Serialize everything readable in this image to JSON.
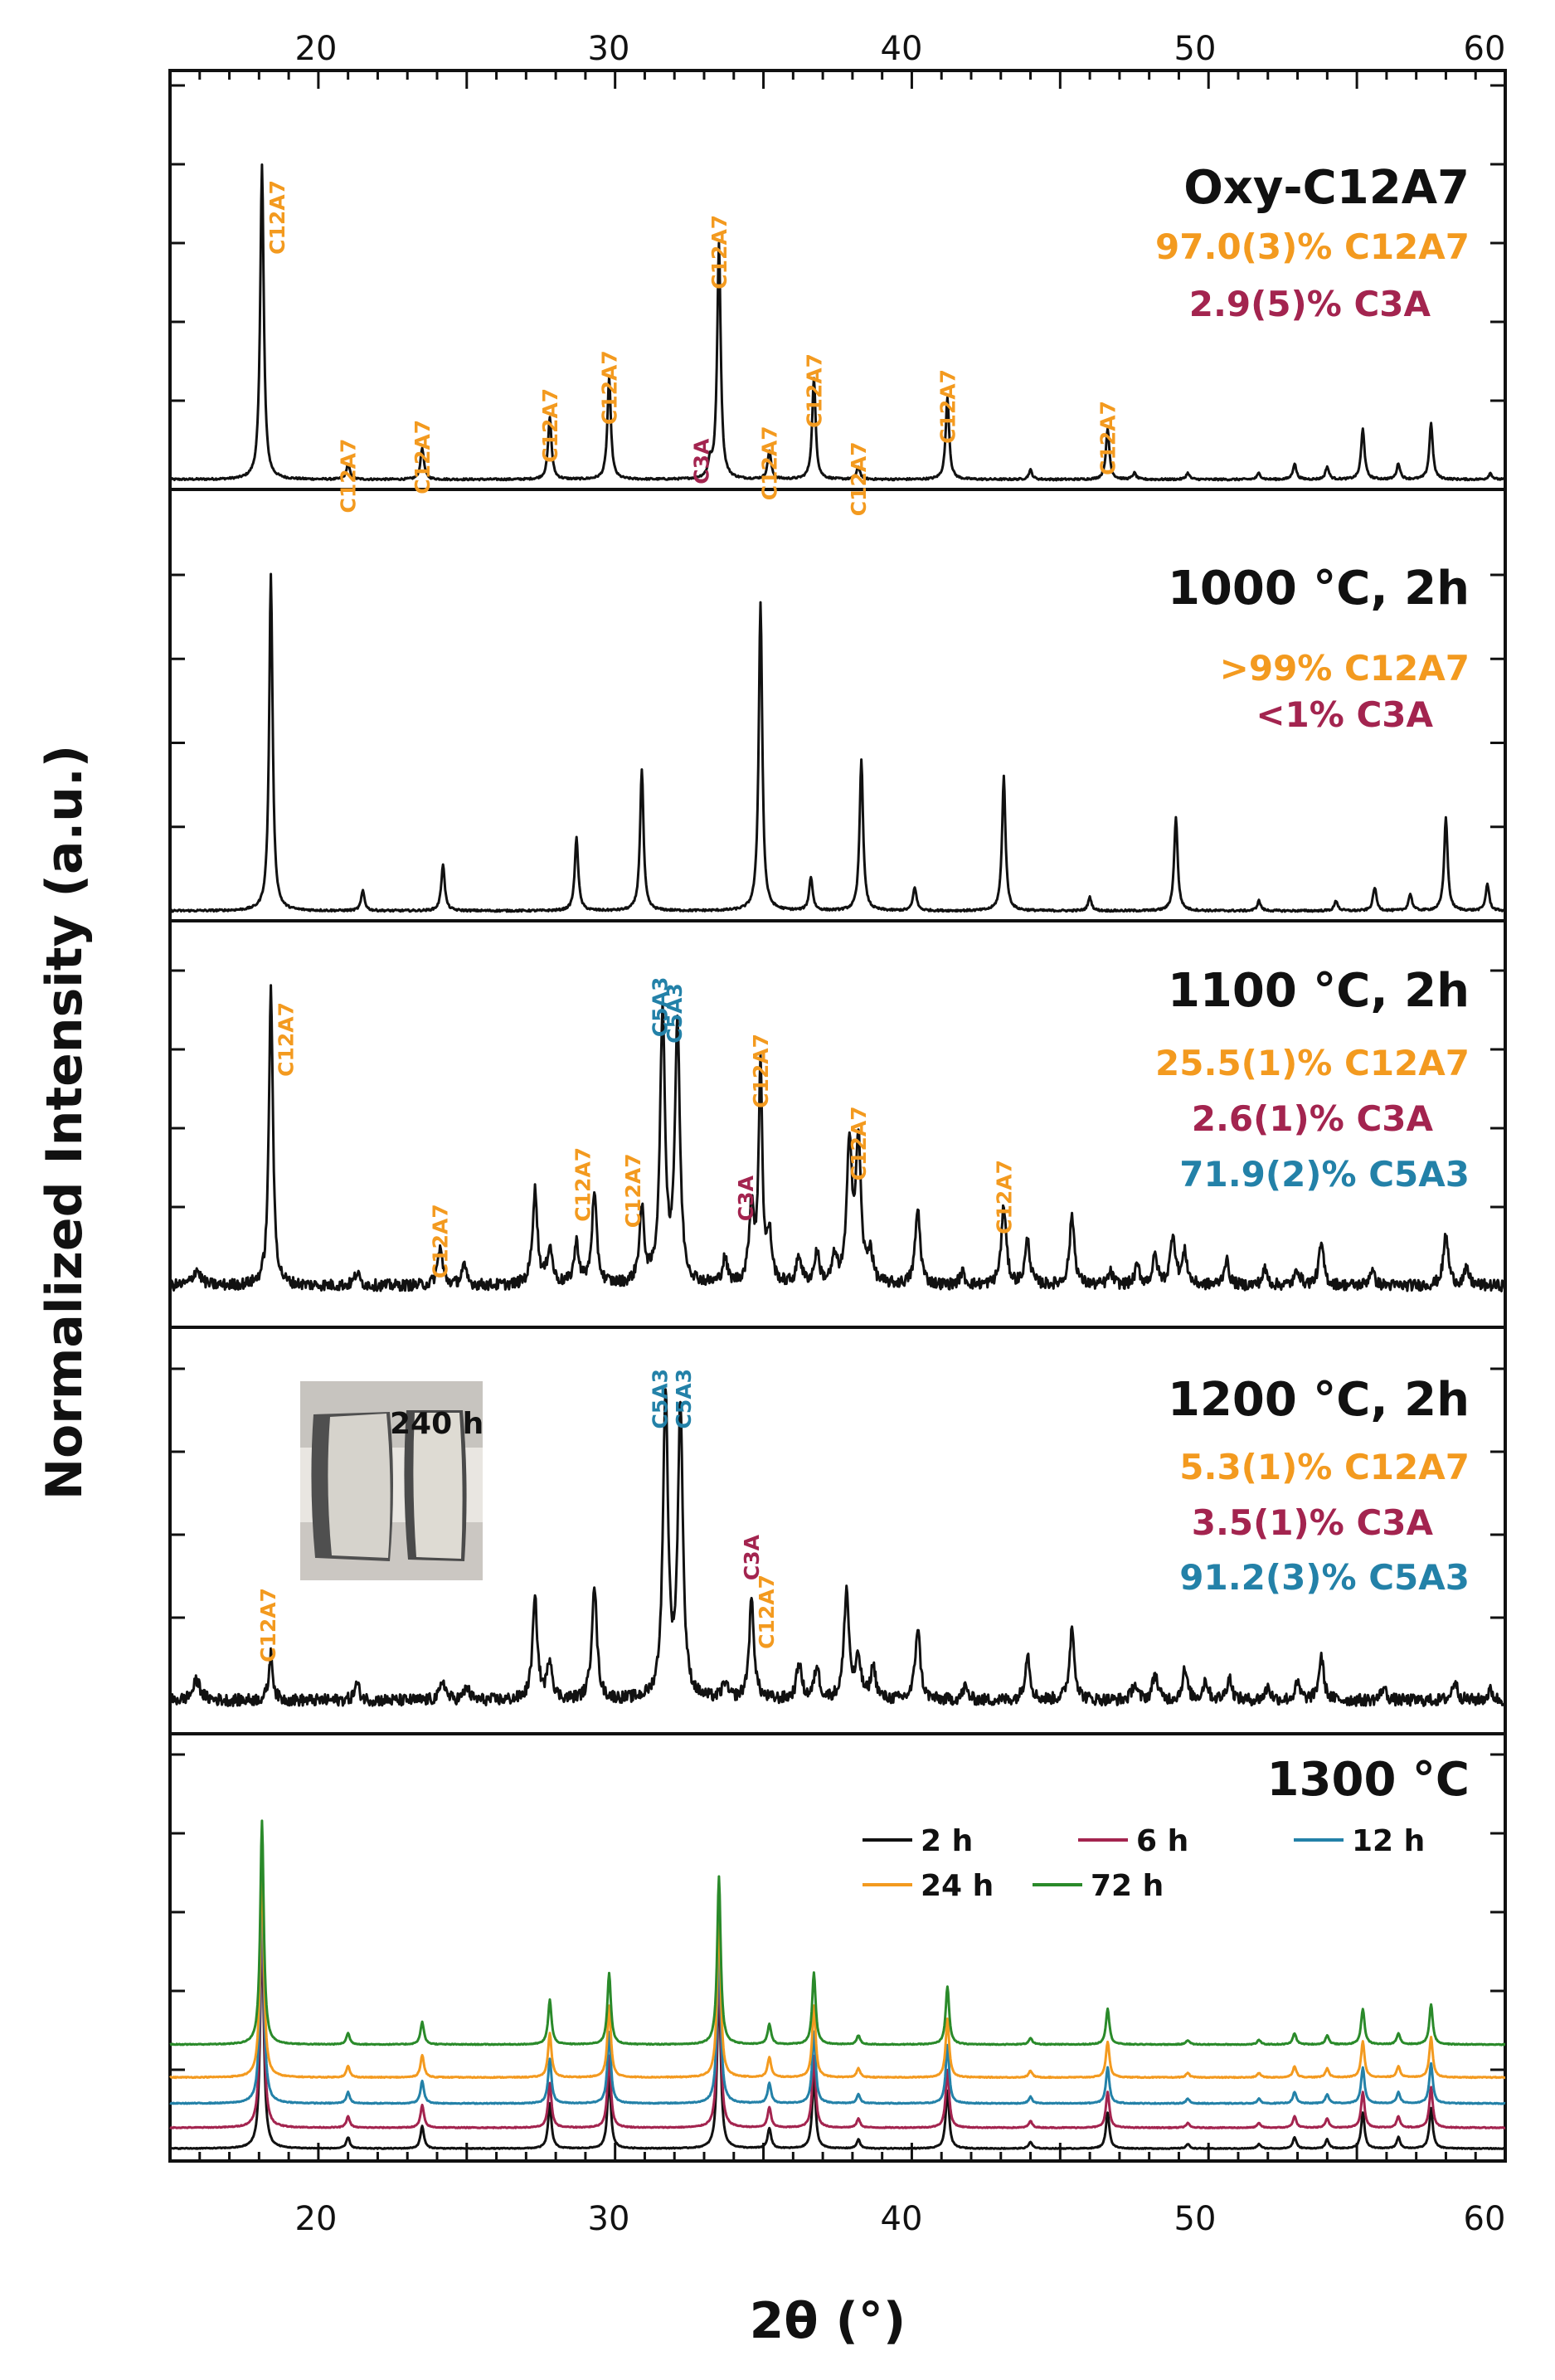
{
  "colors": {
    "axis": "#111111",
    "trace": "#111111",
    "c12a7": "#f39a1f",
    "c3a": "#a3244f",
    "c5a3": "#2381a8",
    "green": "#2a8a2a"
  },
  "chart_data": {
    "type": "line",
    "title": "",
    "xlabel": "2θ (°)",
    "ylabel": "Normalized Intensity (a.u.)",
    "xlim": [
      15,
      60
    ],
    "x_ticks": [
      "20",
      "30",
      "40",
      "50",
      "60"
    ],
    "top_x_ticks": [
      "20",
      "30",
      "40",
      "50",
      "60"
    ],
    "panels": [
      {
        "id": "p1",
        "title": "Oxy-C12A7",
        "phases": [
          {
            "text": "97.0(3)% C12A7",
            "phase": "c12a7"
          },
          {
            "text": "2.9(5)% C3A",
            "phase": "c3a"
          }
        ],
        "noise": 0.003,
        "peaks": [
          [
            18.1,
            1.0,
            0.07
          ],
          [
            21.0,
            0.05,
            0.07
          ],
          [
            23.5,
            0.1,
            0.07
          ],
          [
            27.8,
            0.2,
            0.07
          ],
          [
            29.8,
            0.32,
            0.07
          ],
          [
            33.2,
            0.05,
            0.07
          ],
          [
            33.5,
            0.75,
            0.07
          ],
          [
            35.2,
            0.09,
            0.07
          ],
          [
            36.7,
            0.32,
            0.07
          ],
          [
            38.2,
            0.04,
            0.07
          ],
          [
            41.2,
            0.26,
            0.07
          ],
          [
            44.0,
            0.03,
            0.07
          ],
          [
            46.6,
            0.16,
            0.07
          ],
          [
            47.5,
            0.02,
            0.07
          ],
          [
            49.3,
            0.02,
            0.07
          ],
          [
            51.7,
            0.02,
            0.07
          ],
          [
            52.9,
            0.05,
            0.07
          ],
          [
            54.0,
            0.04,
            0.07
          ],
          [
            55.2,
            0.16,
            0.07
          ],
          [
            56.4,
            0.05,
            0.07
          ],
          [
            57.5,
            0.18,
            0.07
          ],
          [
            59.5,
            0.02,
            0.07
          ]
        ],
        "peak_labels": [
          {
            "text": "C12A7",
            "x": 18.6,
            "y": 0.95,
            "phase": "c12a7"
          },
          {
            "text": "C12A7",
            "x": 21.0,
            "y": 0.13,
            "phase": "c12a7"
          },
          {
            "text": "C12A7",
            "x": 23.5,
            "y": 0.19,
            "phase": "c12a7"
          },
          {
            "text": "C12A7",
            "x": 27.8,
            "y": 0.29,
            "phase": "c12a7"
          },
          {
            "text": "C12A7",
            "x": 29.8,
            "y": 0.41,
            "phase": "c12a7"
          },
          {
            "text": "C3A",
            "x": 32.9,
            "y": 0.13,
            "phase": "c3a"
          },
          {
            "text": "C12A7",
            "x": 33.5,
            "y": 0.84,
            "phase": "c12a7"
          },
          {
            "text": "C12A7",
            "x": 35.2,
            "y": 0.17,
            "phase": "c12a7"
          },
          {
            "text": "C12A7",
            "x": 36.7,
            "y": 0.4,
            "phase": "c12a7"
          },
          {
            "text": "C12A7",
            "x": 38.2,
            "y": 0.12,
            "phase": "c12a7"
          },
          {
            "text": "C12A7",
            "x": 41.2,
            "y": 0.35,
            "phase": "c12a7"
          },
          {
            "text": "C12A7",
            "x": 46.6,
            "y": 0.25,
            "phase": "c12a7"
          }
        ]
      },
      {
        "id": "p2",
        "title": "1000 °C, 2h",
        "phases": [
          {
            "text": ">99% C12A7",
            "phase": "c12a7"
          },
          {
            "text": "<1% C3A",
            "phase": "c3a"
          }
        ],
        "noise": 0.003,
        "peaks": [
          [
            18.4,
            1.0,
            0.07
          ],
          [
            21.5,
            0.06,
            0.07
          ],
          [
            24.2,
            0.14,
            0.07
          ],
          [
            28.7,
            0.22,
            0.07
          ],
          [
            30.9,
            0.42,
            0.07
          ],
          [
            34.9,
            0.92,
            0.07
          ],
          [
            36.6,
            0.1,
            0.07
          ],
          [
            38.3,
            0.45,
            0.07
          ],
          [
            40.1,
            0.07,
            0.07
          ],
          [
            43.1,
            0.4,
            0.07
          ],
          [
            46.0,
            0.04,
            0.07
          ],
          [
            48.9,
            0.28,
            0.07
          ],
          [
            51.7,
            0.03,
            0.07
          ],
          [
            54.3,
            0.03,
            0.07
          ],
          [
            55.6,
            0.07,
            0.07
          ],
          [
            56.8,
            0.05,
            0.07
          ],
          [
            58.0,
            0.28,
            0.07
          ],
          [
            59.4,
            0.08,
            0.07
          ]
        ],
        "peak_labels": []
      },
      {
        "id": "p3",
        "title": "1100 °C, 2h",
        "phases": [
          {
            "text": "25.5(1)% C12A7",
            "phase": "c12a7"
          },
          {
            "text": "2.6(1)% C3A",
            "phase": "c3a"
          },
          {
            "text": "71.9(2)% C5A3",
            "phase": "c5a3"
          }
        ],
        "noise": 0.018,
        "peaks": [
          [
            15.9,
            0.05,
            0.15
          ],
          [
            18.4,
            0.95,
            0.08
          ],
          [
            21.3,
            0.04,
            0.1
          ],
          [
            24.1,
            0.12,
            0.1
          ],
          [
            24.9,
            0.06,
            0.1
          ],
          [
            27.3,
            0.3,
            0.1
          ],
          [
            27.8,
            0.12,
            0.1
          ],
          [
            28.7,
            0.13,
            0.1
          ],
          [
            29.3,
            0.28,
            0.1
          ],
          [
            30.9,
            0.23,
            0.1
          ],
          [
            31.6,
            0.85,
            0.1
          ],
          [
            32.1,
            0.82,
            0.1
          ],
          [
            33.7,
            0.08,
            0.1
          ],
          [
            34.6,
            0.25,
            0.1
          ],
          [
            34.9,
            0.7,
            0.07
          ],
          [
            35.2,
            0.15,
            0.1
          ],
          [
            36.2,
            0.09,
            0.1
          ],
          [
            36.8,
            0.1,
            0.1
          ],
          [
            37.4,
            0.08,
            0.1
          ],
          [
            37.9,
            0.45,
            0.1
          ],
          [
            38.2,
            0.45,
            0.1
          ],
          [
            38.6,
            0.1,
            0.1
          ],
          [
            40.2,
            0.24,
            0.1
          ],
          [
            41.7,
            0.04,
            0.1
          ],
          [
            43.1,
            0.25,
            0.1
          ],
          [
            43.9,
            0.14,
            0.1
          ],
          [
            45.4,
            0.22,
            0.1
          ],
          [
            46.7,
            0.04,
            0.1
          ],
          [
            47.6,
            0.06,
            0.1
          ],
          [
            48.2,
            0.09,
            0.1
          ],
          [
            48.8,
            0.16,
            0.1
          ],
          [
            49.2,
            0.1,
            0.1
          ],
          [
            50.6,
            0.08,
            0.1
          ],
          [
            51.9,
            0.05,
            0.1
          ],
          [
            53.0,
            0.05,
            0.1
          ],
          [
            53.8,
            0.13,
            0.1
          ],
          [
            55.5,
            0.05,
            0.1
          ],
          [
            58.0,
            0.16,
            0.1
          ],
          [
            58.7,
            0.05,
            0.1
          ]
        ],
        "peak_labels": [
          {
            "text": "C12A7",
            "x": 18.9,
            "y": 0.9,
            "phase": "c12a7"
          },
          {
            "text": "C12A7",
            "x": 24.1,
            "y": 0.26,
            "phase": "c12a7"
          },
          {
            "text": "C12A7",
            "x": 28.9,
            "y": 0.44,
            "phase": "c12a7"
          },
          {
            "text": "C12A7",
            "x": 30.6,
            "y": 0.42,
            "phase": "c12a7"
          },
          {
            "text": "C5A3",
            "x": 31.5,
            "y": 0.98,
            "phase": "c5a3"
          },
          {
            "text": "C5A3",
            "x": 32.0,
            "y": 0.96,
            "phase": "c5a3"
          },
          {
            "text": "C3A",
            "x": 34.4,
            "y": 0.35,
            "phase": "c3a"
          },
          {
            "text": "C12A7",
            "x": 34.9,
            "y": 0.8,
            "phase": "c12a7"
          },
          {
            "text": "C12A7",
            "x": 38.2,
            "y": 0.57,
            "phase": "c12a7"
          },
          {
            "text": "C12A7",
            "x": 43.1,
            "y": 0.4,
            "phase": "c12a7"
          }
        ]
      },
      {
        "id": "p4",
        "title": "1200 °C, 2h",
        "phases": [
          {
            "text": "5.3(1)% C12A7",
            "phase": "c12a7"
          },
          {
            "text": "3.5(1)% C3A",
            "phase": "c3a"
          },
          {
            "text": "91.2(3)% C5A3",
            "phase": "c5a3"
          }
        ],
        "noise": 0.018,
        "peaks": [
          [
            15.9,
            0.06,
            0.15
          ],
          [
            18.4,
            0.14,
            0.08
          ],
          [
            21.3,
            0.05,
            0.1
          ],
          [
            24.2,
            0.06,
            0.1
          ],
          [
            25.0,
            0.04,
            0.1
          ],
          [
            27.3,
            0.3,
            0.1
          ],
          [
            27.8,
            0.12,
            0.1
          ],
          [
            29.3,
            0.35,
            0.1
          ],
          [
            31.7,
            0.92,
            0.1
          ],
          [
            32.2,
            0.88,
            0.1
          ],
          [
            33.7,
            0.05,
            0.1
          ],
          [
            34.6,
            0.3,
            0.1
          ],
          [
            36.2,
            0.11,
            0.1
          ],
          [
            36.8,
            0.1,
            0.1
          ],
          [
            37.8,
            0.33,
            0.1
          ],
          [
            38.2,
            0.12,
            0.1
          ],
          [
            38.7,
            0.1,
            0.1
          ],
          [
            40.2,
            0.22,
            0.1
          ],
          [
            41.8,
            0.04,
            0.1
          ],
          [
            43.9,
            0.14,
            0.1
          ],
          [
            45.4,
            0.22,
            0.1
          ],
          [
            47.5,
            0.05,
            0.1
          ],
          [
            48.2,
            0.08,
            0.1
          ],
          [
            49.2,
            0.09,
            0.1
          ],
          [
            49.9,
            0.06,
            0.1
          ],
          [
            50.7,
            0.07,
            0.1
          ],
          [
            52.0,
            0.04,
            0.1
          ],
          [
            53.0,
            0.05,
            0.1
          ],
          [
            53.8,
            0.13,
            0.1
          ],
          [
            55.9,
            0.04,
            0.1
          ],
          [
            58.3,
            0.06,
            0.1
          ],
          [
            59.5,
            0.03,
            0.1
          ]
        ],
        "peak_labels": [
          {
            "text": "C12A7",
            "x": 18.3,
            "y": 0.34,
            "phase": "c12a7"
          },
          {
            "text": "C5A3",
            "x": 31.5,
            "y": 1.0,
            "phase": "c5a3"
          },
          {
            "text": "C5A3",
            "x": 32.3,
            "y": 1.0,
            "phase": "c5a3"
          },
          {
            "text": "C3A",
            "x": 34.6,
            "y": 0.5,
            "phase": "c3a"
          },
          {
            "text": "C12A7",
            "x": 35.1,
            "y": 0.38,
            "phase": "c12a7"
          }
        ]
      },
      {
        "id": "p5",
        "title": "1300 °C",
        "legend": [
          {
            "name": "2 h",
            "color": "#111111",
            "offset": 0.0
          },
          {
            "name": "6 h",
            "color": "#a3244f",
            "offset": 0.12
          },
          {
            "name": "12 h",
            "color": "#2381a8",
            "offset": 0.26
          },
          {
            "name": "24 h",
            "color": "#f39a1f",
            "offset": 0.41
          },
          {
            "name": "72 h",
            "color": "#2a8a2a",
            "offset": 0.6
          }
        ],
        "peaks": [
          [
            18.1,
            1.0,
            0.07
          ],
          [
            21.0,
            0.05,
            0.07
          ],
          [
            23.5,
            0.1,
            0.07
          ],
          [
            27.8,
            0.2,
            0.07
          ],
          [
            29.8,
            0.32,
            0.07
          ],
          [
            33.5,
            0.75,
            0.07
          ],
          [
            35.2,
            0.09,
            0.07
          ],
          [
            36.7,
            0.32,
            0.07
          ],
          [
            38.2,
            0.04,
            0.07
          ],
          [
            41.2,
            0.26,
            0.07
          ],
          [
            44.0,
            0.03,
            0.07
          ],
          [
            46.6,
            0.16,
            0.07
          ],
          [
            49.3,
            0.02,
            0.07
          ],
          [
            51.7,
            0.02,
            0.07
          ],
          [
            52.9,
            0.05,
            0.07
          ],
          [
            54.0,
            0.04,
            0.07
          ],
          [
            55.2,
            0.16,
            0.07
          ],
          [
            56.4,
            0.05,
            0.07
          ],
          [
            57.5,
            0.18,
            0.07
          ]
        ]
      }
    ],
    "inset": {
      "caption": "240 h"
    }
  }
}
